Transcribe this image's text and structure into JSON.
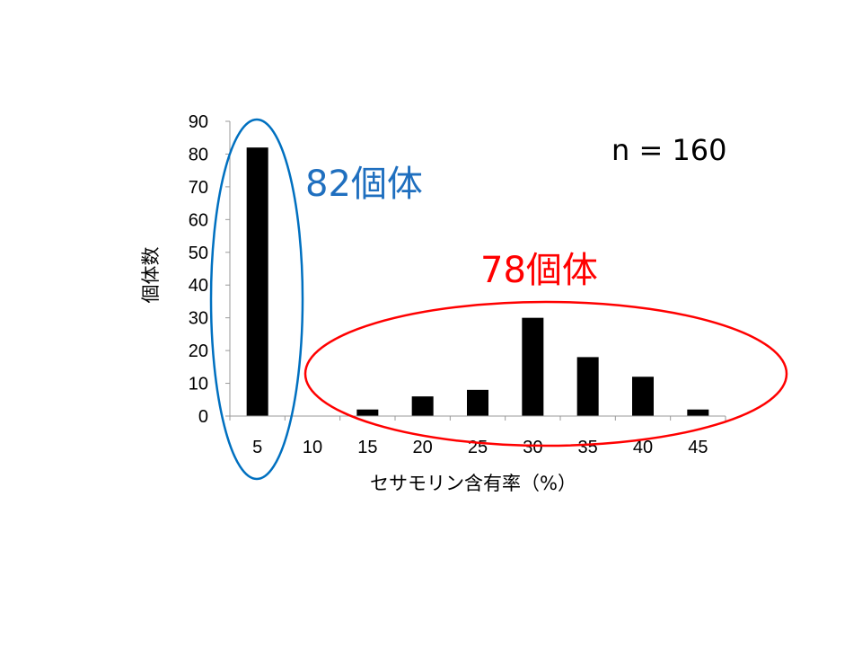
{
  "chart_data": {
    "type": "bar",
    "categories": [
      "5",
      "10",
      "15",
      "20",
      "25",
      "30",
      "35",
      "40",
      "45"
    ],
    "values": [
      82,
      0,
      2,
      6,
      8,
      30,
      18,
      12,
      2
    ],
    "xlabel": "セサモリン含有率（%）",
    "ylabel": "個体数",
    "ylim": [
      0,
      90
    ],
    "yticks": [
      0,
      10,
      20,
      30,
      40,
      50,
      60,
      70,
      80,
      90
    ],
    "bar_color": "#000000",
    "grid": false
  },
  "annotations": {
    "sample_size": "n = 160",
    "group_low": {
      "text": "82個体",
      "color": "#1f6fbf"
    },
    "group_high": {
      "text": "78個体",
      "color": "#ff0000"
    }
  },
  "ellipse_colors": {
    "low": "#0070c0",
    "high": "#ff0000"
  }
}
